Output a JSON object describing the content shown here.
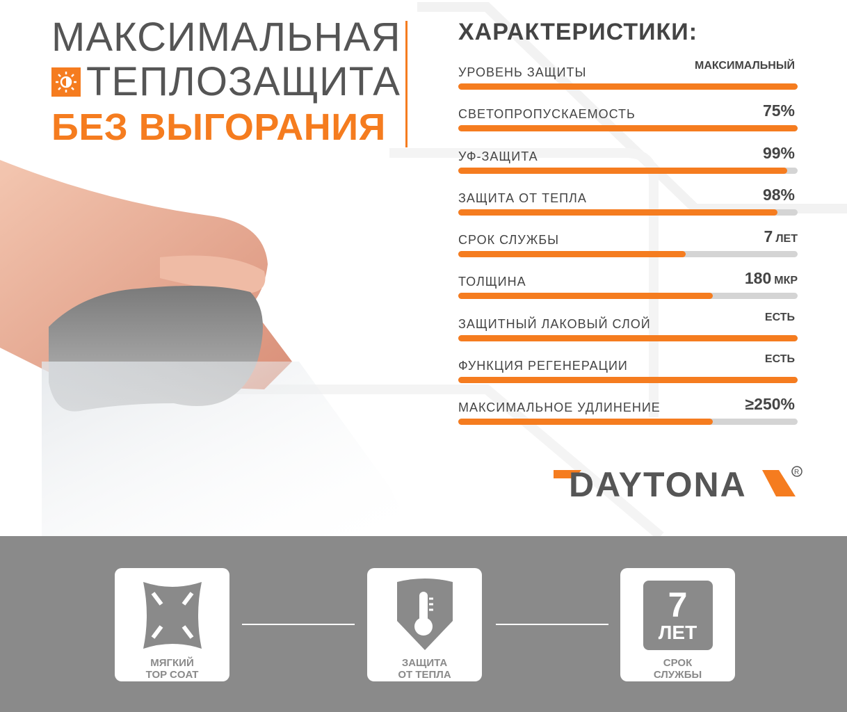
{
  "headline": {
    "line1": "МАКСИМАЛЬНАЯ",
    "line2": "ТЕПЛОЗАЩИТА",
    "line3": "БЕЗ ВЫГОРАНИЯ",
    "icon": "sun-icon"
  },
  "specs": {
    "title": "ХАРАКТЕРИСТИКИ:",
    "rows": [
      {
        "label": "УРОВЕНЬ ЗАЩИТЫ",
        "value": "МАКСИМАЛЬНЫЙ",
        "unit": "",
        "fill": 1.0
      },
      {
        "label": "СВЕТОПРОПУСКАЕМОСТЬ",
        "value": "75%",
        "unit": "",
        "fill": 1.0
      },
      {
        "label": "УФ-ЗАЩИТА",
        "value": "99%",
        "unit": "",
        "fill": 0.97
      },
      {
        "label": "ЗАЩИТА ОТ ТЕПЛА",
        "value": "98%",
        "unit": "",
        "fill": 0.94
      },
      {
        "label": "СРОК СЛУЖБЫ",
        "value": "7",
        "unit": "ЛЕТ",
        "fill": 0.67
      },
      {
        "label": "ТОЛЩИНА",
        "value": "180",
        "unit": "МКР",
        "fill": 0.75
      },
      {
        "label": "ЗАЩИТНЫЙ ЛАКОВЫЙ СЛОЙ",
        "value": "ЕСТЬ",
        "unit": "",
        "fill": 1.0
      },
      {
        "label": "ФУНКЦИЯ РЕГЕНЕРАЦИИ",
        "value": "ЕСТЬ",
        "unit": "",
        "fill": 1.0
      },
      {
        "label": "МАКСИМАЛЬНОЕ УДЛИНЕНИЕ",
        "value": "≥250%",
        "unit": "",
        "fill": 0.75
      }
    ]
  },
  "logo": {
    "text": "DAYTONA",
    "registered": "®"
  },
  "features": [
    {
      "caption_line1": "МЯГКИЙ",
      "caption_line2": "TOP COAT",
      "icon": "stretch-arrows-icon"
    },
    {
      "caption_line1": "ЗАЩИТА",
      "caption_line2": "ОТ ТЕПЛА",
      "icon": "shield-thermometer-icon"
    },
    {
      "caption_line1": "СРОК",
      "caption_line2": "СЛУЖБЫ",
      "badge_number": "7",
      "badge_unit": "ЛЕТ",
      "icon": "years-badge-icon"
    }
  ],
  "colors": {
    "accent": "#f57c1f",
    "text": "#444444",
    "band": "#8a8a8a",
    "track": "#d4d4d4"
  }
}
